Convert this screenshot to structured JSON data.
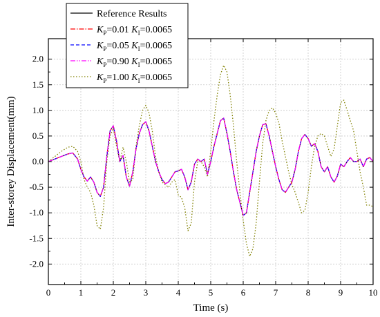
{
  "chart_data": {
    "type": "line",
    "title": "",
    "xlabel": "Time (s)",
    "ylabel": "Inter-storey Displacement(mm)",
    "xlim": [
      0,
      10
    ],
    "ylim": [
      -2.4,
      2.4
    ],
    "xticks": [
      0,
      1,
      2,
      3,
      4,
      5,
      6,
      7,
      8,
      9,
      10
    ],
    "yticks": [
      -2.0,
      -1.5,
      -1.0,
      -0.5,
      0.0,
      0.5,
      1.0,
      1.5,
      2.0
    ],
    "ytick_labels": [
      "-2.0",
      "-1.5",
      "-1.0",
      "-0.5",
      "0.0",
      "0.5",
      "1.0",
      "1.5",
      "2.0"
    ],
    "xtick_labels": [
      "0",
      "1",
      "2",
      "3",
      "4",
      "5",
      "6",
      "7",
      "8",
      "9",
      "10"
    ],
    "grid": true,
    "legend_position": "top-left",
    "x": [
      0.0,
      0.2,
      0.4,
      0.6,
      0.75,
      0.9,
      1.0,
      1.1,
      1.2,
      1.3,
      1.4,
      1.5,
      1.6,
      1.7,
      1.8,
      1.9,
      2.0,
      2.1,
      2.2,
      2.3,
      2.4,
      2.5,
      2.6,
      2.7,
      2.8,
      2.9,
      3.0,
      3.1,
      3.2,
      3.3,
      3.4,
      3.5,
      3.6,
      3.7,
      3.8,
      3.9,
      4.0,
      4.1,
      4.2,
      4.3,
      4.4,
      4.5,
      4.6,
      4.7,
      4.8,
      4.9,
      5.0,
      5.1,
      5.2,
      5.3,
      5.4,
      5.5,
      5.6,
      5.7,
      5.8,
      5.9,
      6.0,
      6.1,
      6.2,
      6.3,
      6.4,
      6.5,
      6.6,
      6.7,
      6.8,
      6.9,
      7.0,
      7.1,
      7.2,
      7.3,
      7.4,
      7.5,
      7.6,
      7.7,
      7.8,
      7.9,
      8.0,
      8.1,
      8.2,
      8.3,
      8.4,
      8.5,
      8.6,
      8.7,
      8.8,
      8.9,
      9.0,
      9.1,
      9.2,
      9.3,
      9.4,
      9.5,
      9.6,
      9.7,
      9.8,
      9.9,
      10.0
    ],
    "series": [
      {
        "name": "Reference Results",
        "color": "#000000",
        "dash": "solid",
        "values": [
          0.0,
          0.05,
          0.1,
          0.15,
          0.17,
          0.05,
          -0.15,
          -0.3,
          -0.38,
          -0.3,
          -0.4,
          -0.6,
          -0.68,
          -0.5,
          0.1,
          0.6,
          0.7,
          0.4,
          0.0,
          0.12,
          -0.3,
          -0.48,
          -0.2,
          0.25,
          0.55,
          0.72,
          0.78,
          0.6,
          0.3,
          0.0,
          -0.2,
          -0.35,
          -0.43,
          -0.4,
          -0.3,
          -0.2,
          -0.18,
          -0.15,
          -0.3,
          -0.55,
          -0.4,
          -0.05,
          0.05,
          0.0,
          0.05,
          -0.25,
          0.0,
          0.3,
          0.55,
          0.8,
          0.85,
          0.55,
          0.2,
          -0.2,
          -0.55,
          -0.8,
          -1.05,
          -1.0,
          -0.6,
          -0.2,
          0.2,
          0.5,
          0.72,
          0.74,
          0.5,
          0.2,
          -0.1,
          -0.35,
          -0.55,
          -0.6,
          -0.5,
          -0.4,
          -0.15,
          0.2,
          0.45,
          0.53,
          0.45,
          0.3,
          0.35,
          0.2,
          -0.1,
          -0.2,
          -0.1,
          -0.3,
          -0.4,
          -0.28,
          -0.05,
          -0.1,
          0.0,
          0.08,
          0.0,
          0.0,
          0.05,
          -0.1,
          0.05,
          0.08,
          0.0
        ]
      },
      {
        "name": "KP=0.01 KI=0.0065",
        "color": "#ff0000",
        "dash": "dashdot",
        "values": [
          0.0,
          0.05,
          0.1,
          0.15,
          0.17,
          0.05,
          -0.15,
          -0.3,
          -0.38,
          -0.3,
          -0.4,
          -0.6,
          -0.68,
          -0.5,
          0.1,
          0.6,
          0.7,
          0.4,
          0.0,
          0.12,
          -0.3,
          -0.48,
          -0.2,
          0.25,
          0.55,
          0.72,
          0.78,
          0.6,
          0.3,
          0.0,
          -0.2,
          -0.35,
          -0.43,
          -0.4,
          -0.3,
          -0.2,
          -0.18,
          -0.15,
          -0.3,
          -0.55,
          -0.4,
          -0.05,
          0.05,
          0.0,
          0.05,
          -0.25,
          0.0,
          0.3,
          0.55,
          0.8,
          0.85,
          0.55,
          0.2,
          -0.2,
          -0.55,
          -0.8,
          -1.05,
          -1.0,
          -0.6,
          -0.2,
          0.2,
          0.5,
          0.72,
          0.74,
          0.5,
          0.2,
          -0.1,
          -0.35,
          -0.55,
          -0.6,
          -0.5,
          -0.4,
          -0.15,
          0.2,
          0.45,
          0.53,
          0.45,
          0.3,
          0.35,
          0.2,
          -0.1,
          -0.2,
          -0.1,
          -0.3,
          -0.4,
          -0.28,
          -0.05,
          -0.1,
          0.0,
          0.08,
          0.0,
          0.0,
          0.05,
          -0.1,
          0.05,
          0.08,
          0.0
        ]
      },
      {
        "name": "KP=0.05 KI=0.0065",
        "color": "#0000ff",
        "dash": "dash",
        "values": [
          0.0,
          0.05,
          0.1,
          0.15,
          0.17,
          0.05,
          -0.15,
          -0.3,
          -0.38,
          -0.3,
          -0.4,
          -0.6,
          -0.68,
          -0.5,
          0.1,
          0.6,
          0.7,
          0.4,
          0.0,
          0.12,
          -0.3,
          -0.48,
          -0.2,
          0.25,
          0.55,
          0.72,
          0.78,
          0.6,
          0.3,
          0.0,
          -0.2,
          -0.35,
          -0.43,
          -0.4,
          -0.3,
          -0.2,
          -0.18,
          -0.15,
          -0.3,
          -0.55,
          -0.4,
          -0.05,
          0.05,
          0.0,
          0.05,
          -0.25,
          0.0,
          0.3,
          0.55,
          0.8,
          0.85,
          0.55,
          0.2,
          -0.2,
          -0.55,
          -0.8,
          -1.05,
          -1.0,
          -0.6,
          -0.2,
          0.2,
          0.5,
          0.72,
          0.74,
          0.5,
          0.2,
          -0.1,
          -0.35,
          -0.55,
          -0.6,
          -0.5,
          -0.4,
          -0.15,
          0.2,
          0.45,
          0.53,
          0.45,
          0.3,
          0.35,
          0.2,
          -0.1,
          -0.2,
          -0.1,
          -0.3,
          -0.4,
          -0.28,
          -0.05,
          -0.1,
          0.0,
          0.08,
          0.0,
          0.0,
          0.05,
          -0.1,
          0.05,
          0.08,
          0.0
        ]
      },
      {
        "name": "KP=0.90 KI=0.0065",
        "color": "#ff00ff",
        "dash": "dashdotdot",
        "values": [
          0.0,
          0.05,
          0.1,
          0.15,
          0.17,
          0.05,
          -0.15,
          -0.3,
          -0.38,
          -0.3,
          -0.4,
          -0.6,
          -0.68,
          -0.5,
          0.1,
          0.6,
          0.7,
          0.4,
          0.0,
          0.12,
          -0.3,
          -0.48,
          -0.2,
          0.25,
          0.55,
          0.72,
          0.78,
          0.6,
          0.3,
          0.0,
          -0.2,
          -0.35,
          -0.43,
          -0.4,
          -0.3,
          -0.2,
          -0.18,
          -0.15,
          -0.3,
          -0.55,
          -0.4,
          -0.05,
          0.05,
          0.0,
          0.05,
          -0.25,
          0.0,
          0.3,
          0.55,
          0.8,
          0.85,
          0.55,
          0.2,
          -0.2,
          -0.55,
          -0.8,
          -1.05,
          -1.0,
          -0.6,
          -0.2,
          0.2,
          0.5,
          0.72,
          0.74,
          0.5,
          0.2,
          -0.1,
          -0.35,
          -0.55,
          -0.6,
          -0.5,
          -0.4,
          -0.15,
          0.2,
          0.45,
          0.53,
          0.45,
          0.3,
          0.35,
          0.2,
          -0.1,
          -0.2,
          -0.1,
          -0.3,
          -0.4,
          -0.28,
          -0.05,
          -0.1,
          0.0,
          0.08,
          0.0,
          0.0,
          0.05,
          -0.1,
          0.05,
          0.08,
          0.0
        ]
      },
      {
        "name": "KP=1.00 KI=0.0065",
        "color": "#808000",
        "dash": "dot",
        "values": [
          0.0,
          0.1,
          0.2,
          0.28,
          0.3,
          0.2,
          0.0,
          -0.35,
          -0.5,
          -0.6,
          -0.85,
          -1.25,
          -1.32,
          -0.9,
          0.0,
          0.5,
          0.65,
          0.3,
          0.0,
          0.28,
          0.0,
          -0.4,
          -0.35,
          0.3,
          0.7,
          1.0,
          1.1,
          0.95,
          0.6,
          0.1,
          -0.2,
          -0.4,
          -0.45,
          -0.5,
          -0.4,
          -0.35,
          -0.65,
          -0.7,
          -0.9,
          -1.35,
          -1.2,
          -0.4,
          0.0,
          0.0,
          -0.1,
          -0.3,
          0.2,
          0.8,
          1.3,
          1.7,
          1.88,
          1.75,
          1.3,
          0.7,
          0.0,
          -0.6,
          -1.15,
          -1.6,
          -1.85,
          -1.7,
          -1.2,
          -0.4,
          0.35,
          0.8,
          1.0,
          1.05,
          0.95,
          0.75,
          0.4,
          0.1,
          -0.2,
          -0.45,
          -0.6,
          -0.8,
          -1.0,
          -0.95,
          -0.6,
          -0.1,
          0.3,
          0.5,
          0.55,
          0.5,
          0.3,
          0.1,
          0.25,
          0.7,
          1.15,
          1.2,
          1.0,
          0.8,
          0.6,
          0.2,
          -0.2,
          -0.5,
          -0.85,
          -0.85,
          -0.88
        ]
      }
    ]
  },
  "legend": {
    "items": [
      {
        "kind": "plain",
        "text": "Reference Results"
      },
      {
        "kind": "param",
        "kp_symbol": "K",
        "kp_sub": "P",
        "kp_value": "=0.01",
        "ki_symbol": "K",
        "ki_sub": "I",
        "ki_value": "=0.0065"
      },
      {
        "kind": "param",
        "kp_symbol": "K",
        "kp_sub": "P",
        "kp_value": "=0.05",
        "ki_symbol": "K",
        "ki_sub": "I",
        "ki_value": "=0.0065"
      },
      {
        "kind": "param",
        "kp_symbol": "K",
        "kp_sub": "P",
        "kp_value": "=0.90",
        "ki_symbol": "K",
        "ki_sub": "I",
        "ki_value": "=0.0065"
      },
      {
        "kind": "param",
        "kp_symbol": "K",
        "kp_sub": "P",
        "kp_value": "=1.00",
        "ki_symbol": "K",
        "ki_sub": "I",
        "ki_value": "=0.0065"
      }
    ]
  }
}
